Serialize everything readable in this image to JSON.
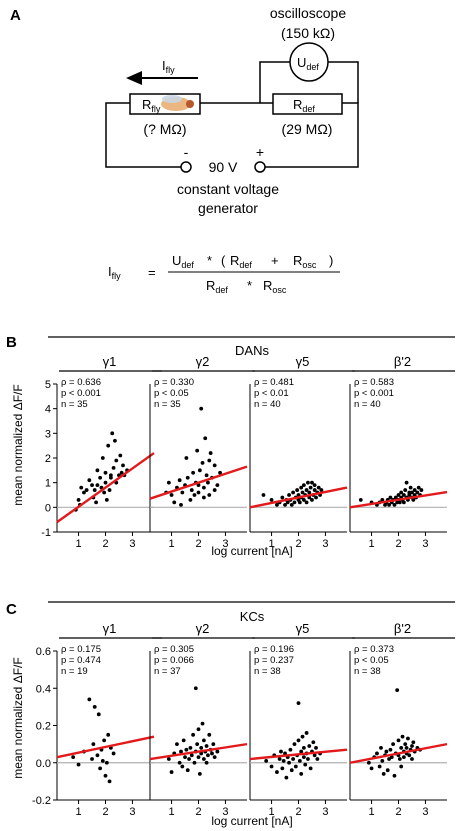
{
  "panel_a": {
    "label": "A",
    "oscilloscope_label": "oscilloscope",
    "oscilloscope_resistance": "(150 kΩ)",
    "voltmeter_main": "U",
    "voltmeter_sub": "def",
    "current_main": "I",
    "current_sub": "fly",
    "fly_resistor_main": "R",
    "fly_resistor_sub": "fly",
    "fly_resistance": "(? MΩ)",
    "def_resistor_main": "R",
    "def_resistor_sub": "def",
    "def_resistance": "(29 MΩ)",
    "minus": "-",
    "plus": "+",
    "voltage": "90 V",
    "generator_line1": "constant voltage",
    "generator_line2": "generator",
    "equation": {
      "lhs_main": "I",
      "lhs_sub": "fly",
      "equals": "=",
      "num_u": "U",
      "num_u_sub": "def",
      "num_mul": "*",
      "num_open": "(",
      "num_r1": "R",
      "num_r1_sub": "def",
      "num_plus": "+",
      "num_r2": "R",
      "num_r2_sub": "osc",
      "num_close": ")",
      "den_r1": "R",
      "den_r1_sub": "def",
      "den_mul": "*",
      "den_r2": "R",
      "den_r2_sub": "osc"
    }
  },
  "panel_b": {
    "label": "B",
    "group": "DANs",
    "ylabel": "mean normalized ΔF/F",
    "xlabel": "log current [nA]"
  },
  "panel_c": {
    "label": "C",
    "group": "KCs",
    "ylabel": "mean normalized ΔF/F",
    "xlabel": "log current [nA]"
  },
  "colors": {
    "fit_line": "#e31a1c",
    "zero_line": "#b0b0b0",
    "points": "#000000"
  },
  "chart_data": [
    {
      "type": "scatter",
      "panel": "B",
      "title": "γ1",
      "xlim": [
        0.2,
        3.8
      ],
      "ylim": [
        -1,
        5
      ],
      "xticks": [
        1,
        2,
        3
      ],
      "yticks": [
        -1,
        0,
        1,
        2,
        3,
        4,
        5
      ],
      "stats": [
        "ρ = 0.636",
        "p < 0.001",
        "n = 35"
      ],
      "fit": [
        [
          0.2,
          -0.6
        ],
        [
          3.8,
          2.2
        ]
      ],
      "points": [
        [
          0.9,
          -0.1
        ],
        [
          1.0,
          0.3
        ],
        [
          1.05,
          0.1
        ],
        [
          1.1,
          0.8
        ],
        [
          1.2,
          0.6
        ],
        [
          1.3,
          0.7
        ],
        [
          1.4,
          1.1
        ],
        [
          1.5,
          0.9
        ],
        [
          1.55,
          0.4
        ],
        [
          1.6,
          0.7
        ],
        [
          1.65,
          0.2
        ],
        [
          1.7,
          1.5
        ],
        [
          1.7,
          0.9
        ],
        [
          1.8,
          1.2
        ],
        [
          1.85,
          0.8
        ],
        [
          1.9,
          2.0
        ],
        [
          1.95,
          0.6
        ],
        [
          2.0,
          1.0
        ],
        [
          2.0,
          1.4
        ],
        [
          2.05,
          0.3
        ],
        [
          2.1,
          2.5
        ],
        [
          2.15,
          0.7
        ],
        [
          2.2,
          1.3
        ],
        [
          2.2,
          1.2
        ],
        [
          2.25,
          3.0
        ],
        [
          2.3,
          1.6
        ],
        [
          2.35,
          2.7
        ],
        [
          2.4,
          1.9
        ],
        [
          2.4,
          1.0
        ],
        [
          2.5,
          1.3
        ],
        [
          2.55,
          2.1
        ],
        [
          2.6,
          1.4
        ],
        [
          2.65,
          1.7
        ],
        [
          2.7,
          1.3
        ],
        [
          2.8,
          1.5
        ]
      ]
    },
    {
      "type": "scatter",
      "panel": "B",
      "title": "γ2",
      "xlim": [
        0.2,
        3.8
      ],
      "ylim": [
        -1,
        5
      ],
      "xticks": [
        1,
        2,
        3
      ],
      "yticks": [],
      "stats": [
        "ρ = 0.330",
        "p < 0.05",
        "n = 35"
      ],
      "fit": [
        [
          0.2,
          0.35
        ],
        [
          3.8,
          1.65
        ]
      ],
      "points": [
        [
          0.8,
          0.6
        ],
        [
          0.9,
          1.0
        ],
        [
          1.0,
          0.5
        ],
        [
          1.1,
          0.2
        ],
        [
          1.2,
          0.8
        ],
        [
          1.3,
          1.1
        ],
        [
          1.35,
          0.1
        ],
        [
          1.4,
          0.6
        ],
        [
          1.5,
          0.9
        ],
        [
          1.55,
          2.0
        ],
        [
          1.6,
          1.2
        ],
        [
          1.7,
          0.3
        ],
        [
          1.75,
          0.7
        ],
        [
          1.8,
          1.4
        ],
        [
          1.85,
          0.5
        ],
        [
          1.9,
          1.0
        ],
        [
          1.95,
          2.3
        ],
        [
          2.0,
          0.9
        ],
        [
          2.0,
          0.6
        ],
        [
          2.05,
          1.5
        ],
        [
          2.1,
          4.0
        ],
        [
          2.15,
          1.8
        ],
        [
          2.2,
          0.8
        ],
        [
          2.2,
          0.4
        ],
        [
          2.25,
          2.8
        ],
        [
          2.3,
          1.3
        ],
        [
          2.35,
          1.0
        ],
        [
          2.4,
          1.9
        ],
        [
          2.4,
          0.5
        ],
        [
          2.45,
          2.2
        ],
        [
          2.5,
          1.2
        ],
        [
          2.6,
          0.7
        ],
        [
          2.6,
          1.7
        ],
        [
          2.7,
          0.9
        ],
        [
          2.8,
          1.4
        ]
      ]
    },
    {
      "type": "scatter",
      "panel": "B",
      "title": "γ5",
      "xlim": [
        0.2,
        3.8
      ],
      "ylim": [
        -1,
        5
      ],
      "xticks": [
        1,
        2,
        3
      ],
      "yticks": [],
      "stats": [
        "ρ = 0.481",
        "p < 0.01",
        "n = 40"
      ],
      "fit": [
        [
          0.2,
          0.0
        ],
        [
          3.8,
          0.8
        ]
      ],
      "points": [
        [
          0.7,
          0.5
        ],
        [
          1.0,
          0.3
        ],
        [
          1.2,
          0.1
        ],
        [
          1.3,
          0.2
        ],
        [
          1.4,
          0.4
        ],
        [
          1.5,
          0.1
        ],
        [
          1.55,
          0.3
        ],
        [
          1.6,
          0.2
        ],
        [
          1.65,
          0.5
        ],
        [
          1.7,
          0.3
        ],
        [
          1.75,
          0.1
        ],
        [
          1.8,
          0.6
        ],
        [
          1.85,
          0.2
        ],
        [
          1.9,
          0.4
        ],
        [
          1.95,
          0.7
        ],
        [
          2.0,
          0.3
        ],
        [
          2.0,
          0.5
        ],
        [
          2.05,
          0.2
        ],
        [
          2.1,
          0.8
        ],
        [
          2.1,
          0.4
        ],
        [
          2.15,
          0.6
        ],
        [
          2.2,
          0.3
        ],
        [
          2.2,
          0.9
        ],
        [
          2.25,
          0.5
        ],
        [
          2.3,
          0.2
        ],
        [
          2.3,
          0.7
        ],
        [
          2.35,
          1.0
        ],
        [
          2.4,
          0.4
        ],
        [
          2.4,
          0.6
        ],
        [
          2.45,
          0.8
        ],
        [
          2.5,
          0.3
        ],
        [
          2.5,
          1.0
        ],
        [
          2.55,
          0.5
        ],
        [
          2.6,
          0.7
        ],
        [
          2.6,
          0.9
        ],
        [
          2.65,
          0.4
        ],
        [
          2.7,
          0.6
        ],
        [
          2.75,
          0.8
        ],
        [
          2.8,
          0.5
        ],
        [
          2.85,
          0.7
        ]
      ]
    },
    {
      "type": "scatter",
      "panel": "B",
      "title": "β'2",
      "xlim": [
        0.2,
        3.8
      ],
      "ylim": [
        -1,
        5
      ],
      "xticks": [
        1,
        2,
        3
      ],
      "yticks": [],
      "stats": [
        "ρ = 0.583",
        "p < 0.001",
        "n = 40"
      ],
      "fit": [
        [
          0.2,
          0.0
        ],
        [
          3.8,
          0.62
        ]
      ],
      "points": [
        [
          0.6,
          0.3
        ],
        [
          1.0,
          0.2
        ],
        [
          1.2,
          0.1
        ],
        [
          1.3,
          0.2
        ],
        [
          1.4,
          0.3
        ],
        [
          1.5,
          0.1
        ],
        [
          1.55,
          0.2
        ],
        [
          1.6,
          0.3
        ],
        [
          1.65,
          0.1
        ],
        [
          1.7,
          0.4
        ],
        [
          1.75,
          0.2
        ],
        [
          1.8,
          0.3
        ],
        [
          1.85,
          0.1
        ],
        [
          1.9,
          0.4
        ],
        [
          1.95,
          0.2
        ],
        [
          2.0,
          0.5
        ],
        [
          2.0,
          0.3
        ],
        [
          2.05,
          0.2
        ],
        [
          2.1,
          0.4
        ],
        [
          2.1,
          0.6
        ],
        [
          2.15,
          0.3
        ],
        [
          2.2,
          0.5
        ],
        [
          2.2,
          0.2
        ],
        [
          2.25,
          0.7
        ],
        [
          2.3,
          0.4
        ],
        [
          2.3,
          1.0
        ],
        [
          2.35,
          0.3
        ],
        [
          2.4,
          0.6
        ],
        [
          2.4,
          0.5
        ],
        [
          2.45,
          0.8
        ],
        [
          2.5,
          0.4
        ],
        [
          2.5,
          0.6
        ],
        [
          2.55,
          0.3
        ],
        [
          2.6,
          0.7
        ],
        [
          2.6,
          0.5
        ],
        [
          2.65,
          0.4
        ],
        [
          2.7,
          0.6
        ],
        [
          2.75,
          0.8
        ],
        [
          2.8,
          0.5
        ],
        [
          2.85,
          0.7
        ]
      ]
    },
    {
      "type": "scatter",
      "panel": "C",
      "title": "γ1",
      "xlim": [
        0.2,
        3.8
      ],
      "ylim": [
        -0.2,
        0.6
      ],
      "xticks": [
        1,
        2,
        3
      ],
      "yticks": [
        -0.2,
        0.0,
        0.2,
        0.4,
        0.6
      ],
      "stats": [
        "ρ = 0.175",
        "p = 0.474",
        "n = 19"
      ],
      "fit": [
        [
          0.2,
          0.03
        ],
        [
          3.8,
          0.14
        ]
      ],
      "points": [
        [
          0.8,
          0.03
        ],
        [
          1.0,
          -0.01
        ],
        [
          1.2,
          0.06
        ],
        [
          1.4,
          0.34
        ],
        [
          1.5,
          0.02
        ],
        [
          1.55,
          0.1
        ],
        [
          1.6,
          0.3
        ],
        [
          1.7,
          0.04
        ],
        [
          1.75,
          0.26
        ],
        [
          1.8,
          -0.03
        ],
        [
          1.85,
          0.07
        ],
        [
          1.9,
          0.01
        ],
        [
          1.95,
          0.12
        ],
        [
          2.0,
          -0.07
        ],
        [
          2.05,
          0.0
        ],
        [
          2.1,
          0.15
        ],
        [
          2.15,
          -0.1
        ],
        [
          2.2,
          0.08
        ],
        [
          2.3,
          0.05
        ]
      ]
    },
    {
      "type": "scatter",
      "panel": "C",
      "title": "γ2",
      "xlim": [
        0.2,
        3.8
      ],
      "ylim": [
        -0.2,
        0.6
      ],
      "xticks": [
        1,
        2,
        3
      ],
      "yticks": [],
      "stats": [
        "ρ = 0.305",
        "p = 0.066",
        "n = 37"
      ],
      "fit": [
        [
          0.2,
          0.02
        ],
        [
          3.8,
          0.1
        ]
      ],
      "points": [
        [
          0.9,
          0.02
        ],
        [
          1.0,
          -0.05
        ],
        [
          1.1,
          0.05
        ],
        [
          1.2,
          0.1
        ],
        [
          1.3,
          0.0
        ],
        [
          1.35,
          0.06
        ],
        [
          1.4,
          -0.02
        ],
        [
          1.45,
          0.12
        ],
        [
          1.5,
          0.03
        ],
        [
          1.55,
          0.07
        ],
        [
          1.6,
          -0.04
        ],
        [
          1.65,
          0.02
        ],
        [
          1.7,
          0.08
        ],
        [
          1.75,
          0.04
        ],
        [
          1.8,
          0.15
        ],
        [
          1.85,
          0.0
        ],
        [
          1.9,
          0.4
        ],
        [
          1.9,
          0.06
        ],
        [
          1.95,
          0.1
        ],
        [
          2.0,
          0.03
        ],
        [
          2.0,
          0.18
        ],
        [
          2.05,
          -0.06
        ],
        [
          2.1,
          0.08
        ],
        [
          2.1,
          0.05
        ],
        [
          2.15,
          0.21
        ],
        [
          2.2,
          0.02
        ],
        [
          2.2,
          0.12
        ],
        [
          2.25,
          0.06
        ],
        [
          2.3,
          0.09
        ],
        [
          2.3,
          0.0
        ],
        [
          2.35,
          0.04
        ],
        [
          2.4,
          0.15
        ],
        [
          2.45,
          0.07
        ],
        [
          2.5,
          0.05
        ],
        [
          2.55,
          0.1
        ],
        [
          2.6,
          0.03
        ],
        [
          2.7,
          0.06
        ]
      ]
    },
    {
      "type": "scatter",
      "panel": "C",
      "title": "γ5",
      "xlim": [
        0.2,
        3.8
      ],
      "ylim": [
        -0.2,
        0.6
      ],
      "xticks": [
        1,
        2,
        3
      ],
      "yticks": [],
      "stats": [
        "ρ = 0.196",
        "p = 0.237",
        "n = 38"
      ],
      "fit": [
        [
          0.2,
          0.02
        ],
        [
          3.8,
          0.07
        ]
      ],
      "points": [
        [
          0.8,
          0.01
        ],
        [
          1.0,
          -0.02
        ],
        [
          1.1,
          0.04
        ],
        [
          1.2,
          -0.05
        ],
        [
          1.3,
          0.02
        ],
        [
          1.35,
          0.06
        ],
        [
          1.4,
          -0.03
        ],
        [
          1.45,
          0.01
        ],
        [
          1.5,
          0.05
        ],
        [
          1.55,
          -0.08
        ],
        [
          1.6,
          0.03
        ],
        [
          1.65,
          0.0
        ],
        [
          1.7,
          0.07
        ],
        [
          1.75,
          -0.04
        ],
        [
          1.8,
          0.02
        ],
        [
          1.85,
          0.1
        ],
        [
          1.9,
          -0.02
        ],
        [
          1.95,
          0.04
        ],
        [
          2.0,
          0.12
        ],
        [
          2.0,
          0.32
        ],
        [
          2.05,
          0.01
        ],
        [
          2.1,
          0.06
        ],
        [
          2.1,
          -0.06
        ],
        [
          2.15,
          0.14
        ],
        [
          2.2,
          0.03
        ],
        [
          2.2,
          0.08
        ],
        [
          2.25,
          -0.01
        ],
        [
          2.3,
          0.05
        ],
        [
          2.3,
          0.16
        ],
        [
          2.35,
          0.02
        ],
        [
          2.4,
          0.09
        ],
        [
          2.45,
          -0.03
        ],
        [
          2.5,
          0.06
        ],
        [
          2.55,
          0.11
        ],
        [
          2.6,
          0.04
        ],
        [
          2.65,
          0.08
        ],
        [
          2.7,
          0.02
        ],
        [
          2.8,
          0.05
        ]
      ]
    },
    {
      "type": "scatter",
      "panel": "C",
      "title": "β'2",
      "xlim": [
        0.2,
        3.8
      ],
      "ylim": [
        -0.2,
        0.6
      ],
      "xticks": [
        1,
        2,
        3
      ],
      "yticks": [],
      "stats": [
        "ρ = 0.373",
        "p < 0.05",
        "n = 38"
      ],
      "fit": [
        [
          0.2,
          0.0
        ],
        [
          3.8,
          0.1
        ]
      ],
      "points": [
        [
          0.9,
          0.0
        ],
        [
          1.0,
          -0.03
        ],
        [
          1.1,
          0.03
        ],
        [
          1.2,
          0.05
        ],
        [
          1.3,
          -0.02
        ],
        [
          1.35,
          0.08
        ],
        [
          1.4,
          0.01
        ],
        [
          1.45,
          -0.06
        ],
        [
          1.5,
          0.04
        ],
        [
          1.55,
          0.06
        ],
        [
          1.6,
          -0.04
        ],
        [
          1.65,
          0.02
        ],
        [
          1.7,
          0.07
        ],
        [
          1.75,
          0.03
        ],
        [
          1.8,
          0.1
        ],
        [
          1.85,
          -0.07
        ],
        [
          1.9,
          0.05
        ],
        [
          1.95,
          0.39
        ],
        [
          2.0,
          0.04
        ],
        [
          2.0,
          0.12
        ],
        [
          2.05,
          0.02
        ],
        [
          2.1,
          0.08
        ],
        [
          2.1,
          -0.02
        ],
        [
          2.15,
          0.14
        ],
        [
          2.2,
          0.06
        ],
        [
          2.2,
          0.03
        ],
        [
          2.25,
          0.1
        ],
        [
          2.3,
          0.05
        ],
        [
          2.3,
          0.08
        ],
        [
          2.35,
          0.13
        ],
        [
          2.4,
          0.04
        ],
        [
          2.45,
          0.07
        ],
        [
          2.5,
          0.09
        ],
        [
          2.5,
          0.02
        ],
        [
          2.55,
          0.11
        ],
        [
          2.6,
          0.06
        ],
        [
          2.7,
          0.08
        ],
        [
          2.8,
          0.07
        ]
      ]
    }
  ]
}
